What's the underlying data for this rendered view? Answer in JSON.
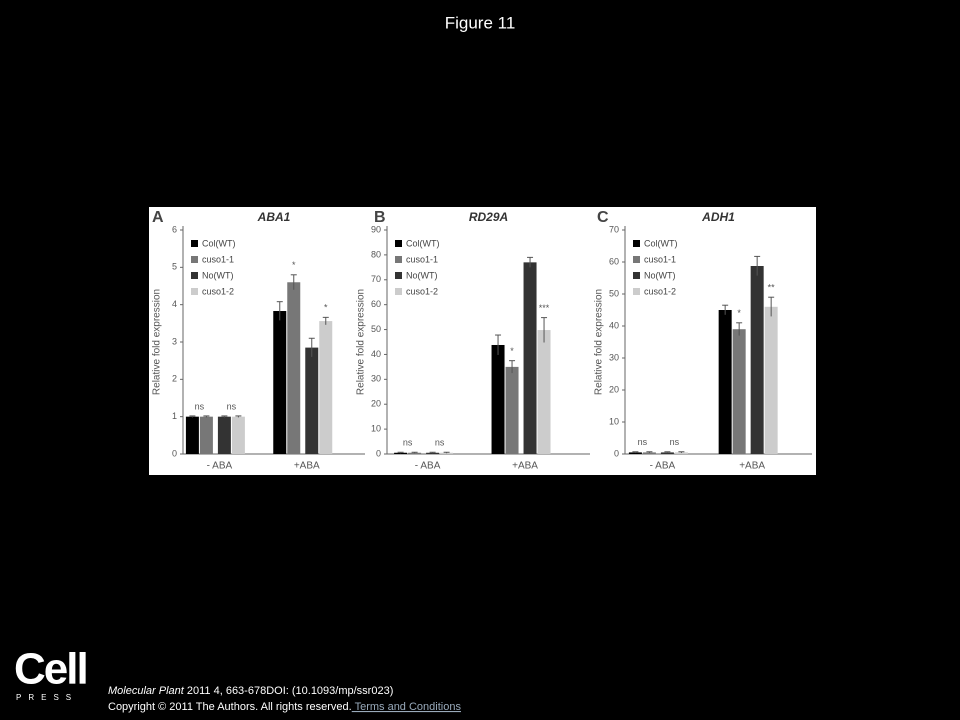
{
  "header": {
    "title": "Figure 11"
  },
  "chart_data": [
    {
      "type": "bar",
      "panel": "A",
      "title": "ABA1",
      "y_label": "Relative fold expression",
      "categories": [
        "- ABA",
        "+ABA"
      ],
      "series": [
        {
          "name": "Col(WT)",
          "color": "#000000",
          "values": [
            1,
            3.83
          ],
          "errors": [
            0.02,
            0.25
          ]
        },
        {
          "name": "cuso1-1",
          "color": "#777777",
          "values": [
            1,
            4.6
          ],
          "errors": [
            0.02,
            0.2
          ]
        },
        {
          "name": "No(WT)",
          "color": "#333333",
          "values": [
            1,
            2.85
          ],
          "errors": [
            0.02,
            0.25
          ]
        },
        {
          "name": "cuso1-2",
          "color": "#cccccc",
          "values": [
            1,
            3.56
          ],
          "errors": [
            0.02,
            0.1
          ]
        }
      ],
      "annotations": [
        [
          "ns",
          "ns"
        ],
        [
          "*",
          "*"
        ]
      ],
      "ylim": [
        0,
        6
      ],
      "yticks": [
        0,
        1,
        2,
        3,
        4,
        5,
        6
      ]
    },
    {
      "type": "bar",
      "panel": "B",
      "title": "RD29A",
      "y_label": "Relative fold expression",
      "categories": [
        "- ABA",
        "+ABA"
      ],
      "series": [
        {
          "name": "Col(WT)",
          "color": "#000000",
          "values": [
            0.5,
            43.8
          ],
          "errors": [
            0.2,
            4
          ]
        },
        {
          "name": "cuso1-1",
          "color": "#777777",
          "values": [
            0.5,
            35
          ],
          "errors": [
            0.2,
            2.5
          ]
        },
        {
          "name": "No(WT)",
          "color": "#333333",
          "values": [
            0.5,
            77
          ],
          "errors": [
            0.2,
            2
          ]
        },
        {
          "name": "cuso1-2",
          "color": "#cccccc",
          "values": [
            0.5,
            49.8
          ],
          "errors": [
            0.2,
            5
          ]
        }
      ],
      "annotations": [
        [
          "ns",
          "ns"
        ],
        [
          "*",
          "***"
        ]
      ],
      "ylim": [
        0,
        90
      ],
      "yticks": [
        0,
        10,
        20,
        30,
        40,
        50,
        60,
        70,
        80,
        90
      ]
    },
    {
      "type": "bar",
      "panel": "C",
      "title": "ADH1",
      "y_label": "Relative fold expression",
      "categories": [
        "- ABA",
        "+ABA"
      ],
      "series": [
        {
          "name": "Col(WT)",
          "color": "#000000",
          "values": [
            0.5,
            45
          ],
          "errors": [
            0.2,
            1.5
          ]
        },
        {
          "name": "cuso1-1",
          "color": "#777777",
          "values": [
            0.5,
            39
          ],
          "errors": [
            0.2,
            2
          ]
        },
        {
          "name": "No(WT)",
          "color": "#333333",
          "values": [
            0.5,
            58.75
          ],
          "errors": [
            0.2,
            3
          ]
        },
        {
          "name": "cuso1-2",
          "color": "#cccccc",
          "values": [
            0.5,
            46
          ],
          "errors": [
            0.2,
            3
          ]
        }
      ],
      "annotations": [
        [
          "ns",
          "ns"
        ],
        [
          "*",
          "**"
        ]
      ],
      "ylim": [
        0,
        70
      ],
      "yticks": [
        0,
        10,
        20,
        30,
        40,
        50,
        60,
        70
      ]
    }
  ],
  "logo": {
    "name": "Cell",
    "sub": "PRESS"
  },
  "footer": {
    "journal": "Molecular Plant",
    "citation": " 2011 4, 663-678DOI: (10.1093/mp/ssr023)",
    "copyright": "Copyright © 2011 The Authors. All rights reserved.",
    "link": " Terms and Conditions"
  }
}
